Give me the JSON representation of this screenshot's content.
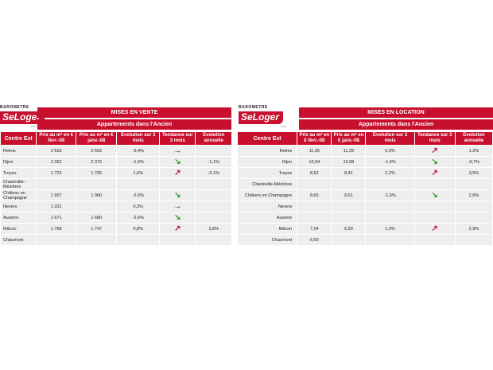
{
  "colors": {
    "accent": "#c8102e",
    "up": "#c8102e",
    "down": "#2a9d2a",
    "flat": "#111111"
  },
  "brand": {
    "top": "BAROMETRE",
    "logo": "SeLoger",
    "tag": ".com"
  },
  "sale": {
    "title": "MISES EN VENTE",
    "subtitle": "Appartements dans l'Ancien",
    "headers": [
      "Centre Est",
      "Prix au m² en € févr.-08",
      "Prix au m² en € janv.-08",
      "Evolution sur 3 mois",
      "Tendance sur 3 mois",
      "Evolution annuelle"
    ],
    "rows": [
      {
        "city": "Reims",
        "feb": "2 553",
        "jan": "2 562",
        "evo3": "-0,4%",
        "trend": "flat",
        "annual": ""
      },
      {
        "city": "Dijon",
        "feb": "2 352",
        "jan": "2 372",
        "evo3": "-1,6%",
        "trend": "down",
        "annual": "-1,1%"
      },
      {
        "city": "Troyes",
        "feb": "1 722",
        "jan": "1 705",
        "evo3": "1,6%",
        "trend": "up",
        "annual": "-0,1%"
      },
      {
        "city": "Charleville-Mézières",
        "feb": "",
        "jan": "",
        "evo3": "",
        "trend": "",
        "annual": ""
      },
      {
        "city": "Châlons en Champagne",
        "feb": "1 957",
        "jan": "1 980",
        "evo3": "-2,6%",
        "trend": "down",
        "annual": ""
      },
      {
        "city": "Nevers",
        "feb": "1 331",
        "jan": "",
        "evo3": "0,3%",
        "trend": "flat",
        "annual": ""
      },
      {
        "city": "Auxerre",
        "feb": "1 671",
        "jan": "1 680",
        "evo3": "-2,6%",
        "trend": "down",
        "annual": ""
      },
      {
        "city": "Mâcon",
        "feb": "1 768",
        "jan": "1 747",
        "evo3": "0,8%",
        "trend": "up",
        "annual": "2,8%"
      },
      {
        "city": "Chaumont",
        "feb": "",
        "jan": "",
        "evo3": "",
        "trend": "",
        "annual": ""
      }
    ]
  },
  "rent": {
    "title": "MISES EN LOCATION",
    "subtitle": "Appartements dans l'Ancien",
    "headers": [
      "Centre Est",
      "Prix au m² en € févr.-08",
      "Prix au m² en € janv.-08",
      "Evolution sur 3 mois",
      "Tendance sur 3 mois",
      "Evolution annuelle"
    ],
    "rows": [
      {
        "city": "Reims",
        "feb": "11,26",
        "jan": "11,29",
        "evo3": "0,5%",
        "trend": "up",
        "annual": "1,2%"
      },
      {
        "city": "Dijon",
        "feb": "10,94",
        "jan": "10,98",
        "evo3": "-1,4%",
        "trend": "down",
        "annual": "-0,7%"
      },
      {
        "city": "Troyes",
        "feb": "8,52",
        "jan": "8,41",
        "evo3": "2,2%",
        "trend": "up",
        "annual": "3,5%"
      },
      {
        "city": "Charleville-Mézières",
        "feb": "",
        "jan": "",
        "evo3": "",
        "trend": "",
        "annual": ""
      },
      {
        "city": "Châlons en Champagne",
        "feb": "8,65",
        "jan": "8,61",
        "evo3": "-1,5%",
        "trend": "down",
        "annual": "2,6%"
      },
      {
        "city": "Nevers",
        "feb": "",
        "jan": "",
        "evo3": "",
        "trend": "",
        "annual": ""
      },
      {
        "city": "Auxerre",
        "feb": "",
        "jan": "",
        "evo3": "",
        "trend": "",
        "annual": ""
      },
      {
        "city": "Mâcon",
        "feb": "7,04",
        "jan": "6,99",
        "evo3": "1,0%",
        "trend": "up",
        "annual": "2,9%"
      },
      {
        "city": "Chaumont",
        "feb": "6,60",
        "jan": "",
        "evo3": "",
        "trend": "",
        "annual": ""
      }
    ]
  }
}
